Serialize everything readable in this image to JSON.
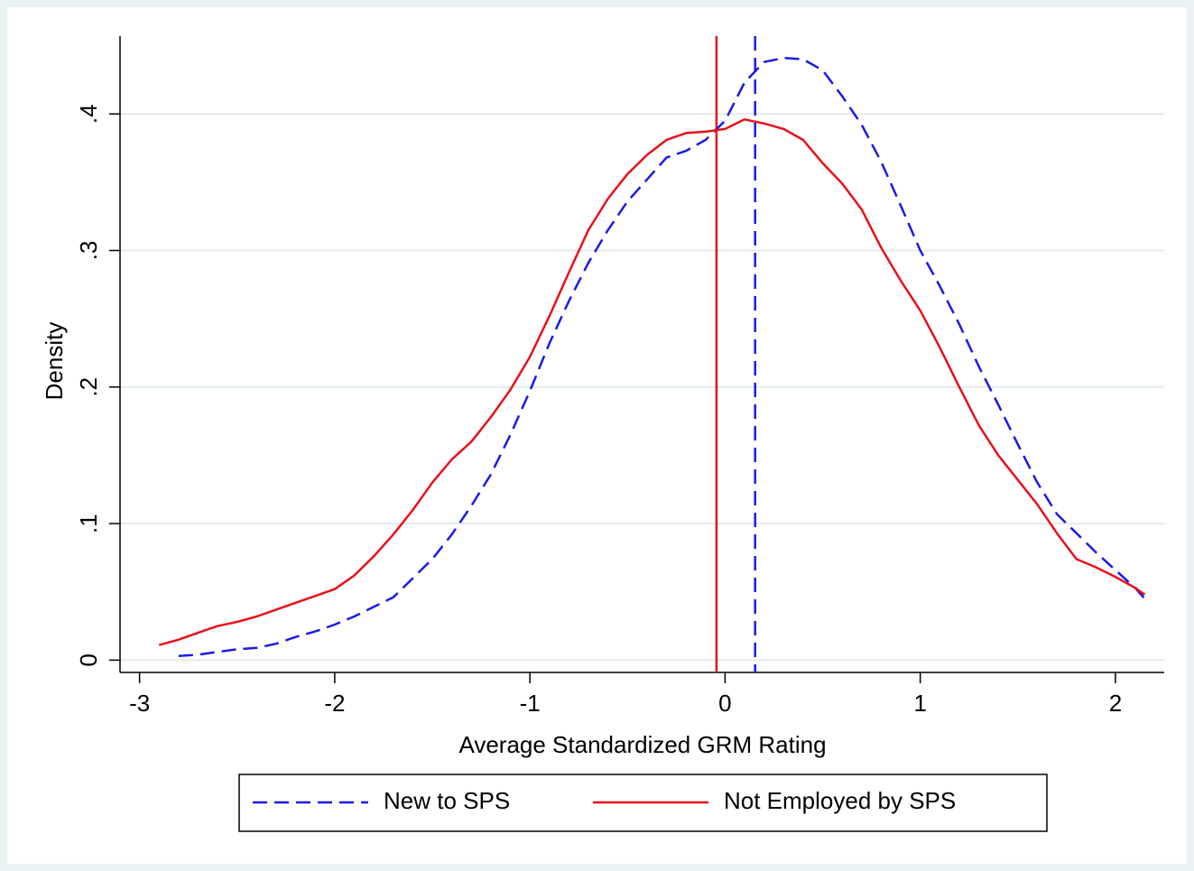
{
  "chart_data": {
    "type": "line",
    "xlabel": "Average Standardized GRM Rating",
    "ylabel": "Density",
    "x": [
      -2.9,
      -2.8,
      -2.7,
      -2.6,
      -2.5,
      -2.4,
      -2.3,
      -2.2,
      -2.1,
      -2.0,
      -1.9,
      -1.8,
      -1.7,
      -1.6,
      -1.5,
      -1.4,
      -1.3,
      -1.2,
      -1.1,
      -1.0,
      -0.9,
      -0.8,
      -0.7,
      -0.6,
      -0.5,
      -0.4,
      -0.3,
      -0.2,
      -0.1,
      0,
      0.1,
      0.2,
      0.3,
      0.4,
      0.5,
      0.6,
      0.7,
      0.8,
      0.9,
      1.0,
      1.1,
      1.2,
      1.3,
      1.4,
      1.5,
      1.6,
      1.7,
      1.8,
      1.9,
      2.0,
      2.1,
      2.15
    ],
    "series": [
      {
        "name": "New to SPS",
        "color": "#1a1ae6",
        "dashed": true,
        "values": [
          null,
          0.003,
          0.004,
          0.006,
          0.008,
          0.009,
          0.012,
          0.017,
          0.021,
          0.026,
          0.032,
          0.039,
          0.046,
          0.06,
          0.074,
          0.092,
          0.113,
          0.136,
          0.165,
          0.197,
          0.232,
          0.263,
          0.291,
          0.315,
          0.336,
          0.352,
          0.368,
          0.373,
          0.381,
          0.395,
          0.423,
          0.438,
          0.441,
          0.44,
          0.432,
          0.413,
          0.392,
          0.365,
          0.333,
          0.3,
          0.274,
          0.246,
          0.215,
          0.187,
          0.158,
          0.13,
          0.107,
          0.093,
          0.079,
          0.066,
          0.053,
          0.045
        ]
      },
      {
        "name": "Not Employed by SPS",
        "color": "#e8101a",
        "dashed": false,
        "values": [
          0.011,
          0.015,
          0.02,
          0.025,
          0.028,
          0.032,
          0.037,
          0.042,
          0.047,
          0.052,
          0.062,
          0.076,
          0.092,
          0.11,
          0.13,
          0.147,
          0.16,
          0.178,
          0.198,
          0.222,
          0.252,
          0.284,
          0.315,
          0.338,
          0.356,
          0.37,
          0.381,
          0.386,
          0.387,
          0.389,
          0.396,
          0.393,
          0.389,
          0.381,
          0.364,
          0.349,
          0.33,
          0.302,
          0.278,
          0.256,
          0.229,
          0.2,
          0.172,
          0.15,
          0.132,
          0.114,
          0.093,
          0.074,
          0.068,
          0.061,
          0.053,
          0.048
        ]
      }
    ],
    "vlines": [
      {
        "value": -0.044,
        "color": "#e8101a",
        "dashed": false
      },
      {
        "value": 0.154,
        "color": "#1a1ae6",
        "dashed": true
      }
    ],
    "xlim": [
      -3.1,
      2.25
    ],
    "ylim": [
      -0.009,
      0.457
    ],
    "xticks": [
      -3,
      -2,
      -1,
      0,
      1,
      2
    ],
    "yticks": [
      0,
      {
        "value": 0.1,
        "label": ".1"
      },
      {
        "value": 0.2,
        "label": ".2"
      },
      {
        "value": 0.3,
        "label": ".3"
      },
      {
        "value": 0.4,
        "label": ".4"
      }
    ],
    "grid": true,
    "legend": "bottom"
  }
}
